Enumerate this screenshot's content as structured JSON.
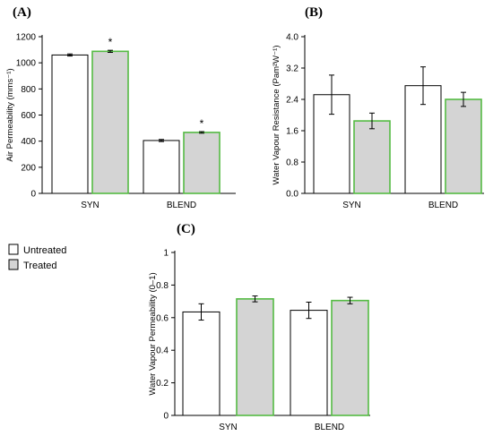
{
  "legend": [
    {
      "label": "Untreated",
      "fill": "#ffffff",
      "stroke": "#000000"
    },
    {
      "label": "Treated",
      "fill": "#d4d4d4",
      "stroke": "#55bb44"
    }
  ],
  "chart_data": [
    {
      "panel": "(A)",
      "type": "bar",
      "categories": [
        "SYN",
        "BLEND"
      ],
      "series": [
        {
          "name": "Untreated",
          "values": [
            1060,
            405
          ],
          "errors": [
            8,
            8
          ]
        },
        {
          "name": "Treated",
          "values": [
            1088,
            467
          ],
          "errors": [
            8,
            6
          ]
        }
      ],
      "significance": [
        [
          "*",
          "*"
        ]
      ],
      "ylabel": "Air Permeability (mms⁻¹)",
      "ylim": [
        0,
        1200
      ],
      "yticks": [
        "0",
        "200",
        "400",
        "600",
        "800",
        "1000",
        "1200"
      ],
      "grid": false
    },
    {
      "panel": "(B)",
      "type": "bar",
      "categories": [
        "SYN",
        "BLEND"
      ],
      "series": [
        {
          "name": "Untreated",
          "values": [
            2.52,
            2.75
          ],
          "errors": [
            0.5,
            0.48
          ]
        },
        {
          "name": "Treated",
          "values": [
            1.85,
            2.4
          ],
          "errors": [
            0.2,
            0.18
          ]
        }
      ],
      "ylabel": "Water Vapour Resistance (Pam²W⁻¹)",
      "ylim": [
        0,
        4.0
      ],
      "yticks": [
        "0.0",
        "0.8",
        "1.6",
        "2.4",
        "3.2",
        "4.0"
      ],
      "grid": false
    },
    {
      "panel": "(C)",
      "type": "bar",
      "categories": [
        "SYN",
        "BLEND"
      ],
      "series": [
        {
          "name": "Untreated",
          "values": [
            0.635,
            0.645
          ],
          "errors": [
            0.05,
            0.05
          ]
        },
        {
          "name": "Treated",
          "values": [
            0.715,
            0.705
          ],
          "errors": [
            0.018,
            0.02
          ]
        }
      ],
      "ylabel": "Water Vapour Permeability (0–1)",
      "ylim": [
        0,
        1
      ],
      "yticks": [
        "0",
        "0.2",
        "0.4",
        "0.6",
        "0.8",
        "1"
      ],
      "grid": false
    }
  ]
}
